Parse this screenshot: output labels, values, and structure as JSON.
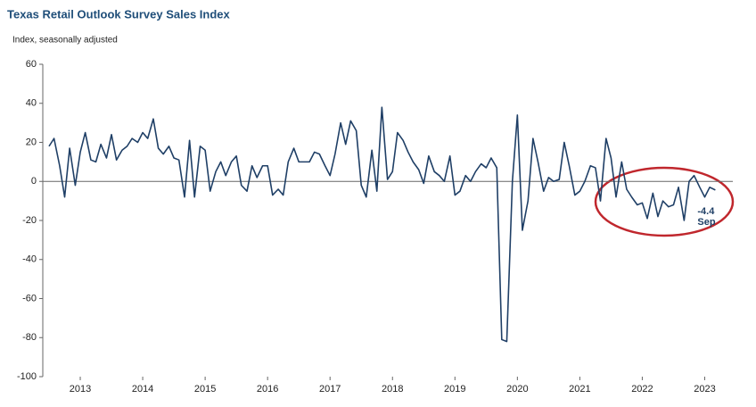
{
  "chart_data": {
    "type": "line",
    "title": "Texas Retail Outlook Survey Sales Index",
    "y_label": "Index, seasonally adjusted",
    "annotation": "Sep",
    "x": [
      2013,
      2013.08,
      2013.17,
      2013.25,
      2013.33,
      2013.42,
      2013.5,
      2013.58,
      2013.67,
      2013.75,
      2013.83,
      2013.92,
      2014,
      2014.08,
      2014.17,
      2014.25,
      2014.33,
      2014.42,
      2014.5,
      2014.58,
      2014.67,
      2014.75,
      2014.83,
      2014.92,
      2015,
      2015.08,
      2015.17,
      2015.25,
      2015.33,
      2015.42,
      2015.5,
      2015.58,
      2015.67,
      2015.75,
      2015.83,
      2015.92,
      2016,
      2016.08,
      2016.17,
      2016.25,
      2016.33,
      2016.42,
      2016.5,
      2016.58,
      2016.67,
      2016.75,
      2016.83,
      2016.92,
      2017,
      2017.08,
      2017.17,
      2017.25,
      2017.33,
      2017.42,
      2017.5,
      2017.58,
      2017.67,
      2017.75,
      2017.83,
      2017.92,
      2018,
      2018.08,
      2018.17,
      2018.25,
      2018.33,
      2018.42,
      2018.5,
      2018.58,
      2018.67,
      2018.75,
      2018.83,
      2018.92,
      2019,
      2019.08,
      2019.17,
      2019.25,
      2019.33,
      2019.42,
      2019.5,
      2019.58,
      2019.67,
      2019.75,
      2019.83,
      2019.92,
      2020,
      2020.08,
      2020.17,
      2020.25,
      2020.33,
      2020.42,
      2020.5,
      2020.58,
      2020.67,
      2020.75,
      2020.83,
      2020.92,
      2021,
      2021.08,
      2021.17,
      2021.25,
      2021.33,
      2021.42,
      2021.5,
      2021.58,
      2021.67,
      2021.75,
      2021.83,
      2021.92,
      2022,
      2022.08,
      2022.17,
      2022.25,
      2022.33,
      2022.42,
      2022.5,
      2022.58,
      2022.67,
      2022.75,
      2022.83,
      2022.92,
      2023,
      2023.08,
      2023.17,
      2023.25,
      2023.33,
      2023.42,
      2023.5,
      2023.58,
      2023.67
    ],
    "series": [
      {
        "name": "Sales Index",
        "color": "#1f3f66",
        "values": [
          18,
          22,
          8,
          -8,
          17,
          -2,
          15,
          25,
          11,
          10,
          19,
          12,
          24,
          11,
          16,
          18,
          22,
          20,
          25,
          22,
          32,
          17,
          14,
          18,
          12,
          11,
          -8,
          21,
          -8,
          18,
          16,
          -5,
          5,
          10,
          3,
          10,
          13,
          -2,
          -5,
          8,
          2,
          8,
          8,
          -7,
          -4,
          -7,
          10,
          17,
          10,
          10,
          10,
          15,
          14,
          8,
          3,
          14,
          30,
          19,
          31,
          26,
          -2,
          -8,
          16,
          -5,
          38,
          1,
          5,
          25,
          21,
          15,
          10,
          6,
          -1,
          13,
          5,
          3,
          0,
          13,
          -7,
          -5,
          3,
          0,
          5,
          9,
          7,
          12,
          7,
          -81,
          -82,
          0,
          34,
          -25,
          -10,
          22,
          10,
          -5,
          2,
          0,
          1,
          20,
          8,
          -7,
          -5,
          0,
          8,
          7,
          -10,
          22,
          12,
          -8,
          10,
          -4,
          -8,
          -12,
          -11,
          -19,
          -6,
          -18,
          -10,
          -13,
          -12,
          -3,
          -20,
          0,
          3,
          -3,
          -8,
          -3,
          -4.4
        ]
      }
    ],
    "xlim": [
      2012.9,
      2023.95
    ],
    "xticks": [
      {
        "value": 2013.5,
        "label": "2013"
      },
      {
        "value": 2014.5,
        "label": "2014"
      },
      {
        "value": 2015.5,
        "label": "2015"
      },
      {
        "value": 2016.5,
        "label": "2016"
      },
      {
        "value": 2017.5,
        "label": "2017"
      },
      {
        "value": 2018.5,
        "label": "2018"
      },
      {
        "value": 2019.5,
        "label": "2019"
      },
      {
        "value": 2020.5,
        "label": "2020"
      },
      {
        "value": 2021.5,
        "label": "2021"
      },
      {
        "value": 2022.5,
        "label": "2022"
      },
      {
        "value": 2023.5,
        "label": "2023"
      }
    ],
    "ylim": [
      -100,
      60
    ],
    "yticks": [
      -100,
      -80,
      -60,
      -40,
      -20,
      0,
      20,
      40,
      60
    ]
  }
}
